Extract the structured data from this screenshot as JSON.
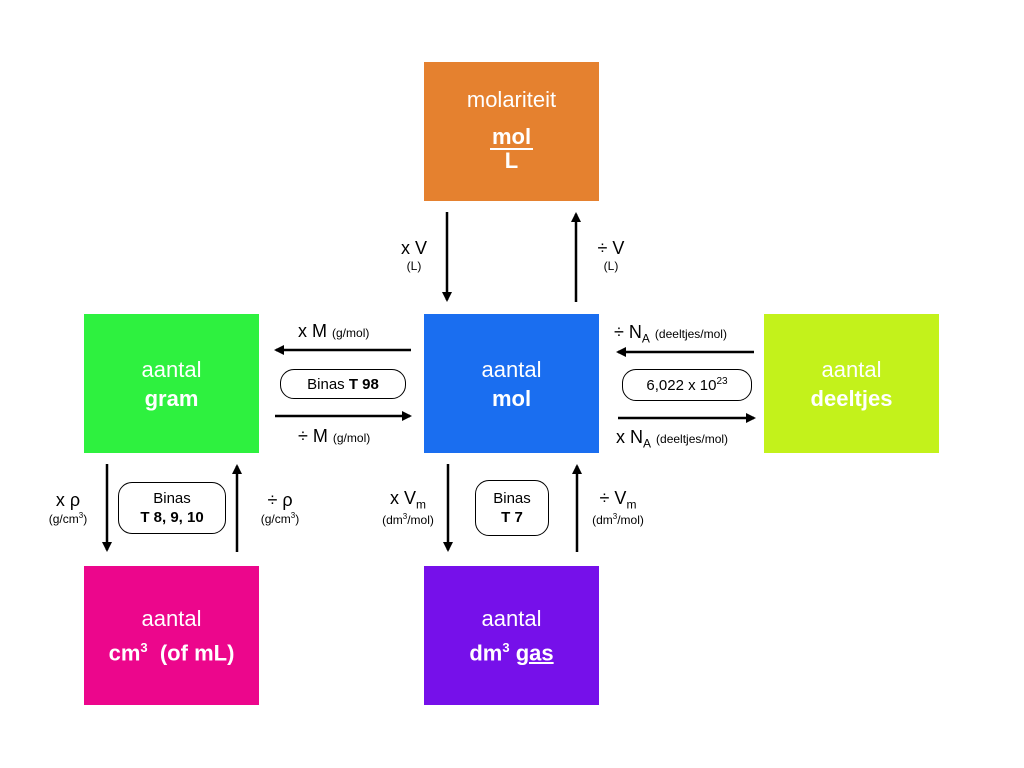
{
  "colors": {
    "molariteit": "#E5812F",
    "mol": "#1A6EF0",
    "gram": "#2EF13F",
    "deeltjes": "#C3F21B",
    "cm3": "#EC068C",
    "dm3": "#7610EA",
    "arrow": "#000000"
  },
  "boxes": {
    "molariteit": {
      "title": "molariteit",
      "numerator": "mol",
      "denominator": "L"
    },
    "mol": {
      "line1": "aantal",
      "line2": "mol"
    },
    "gram": {
      "line1": "aantal",
      "line2": "gram"
    },
    "deeltjes": {
      "line1": "aantal",
      "line2": "deeltjes"
    },
    "cm3": {
      "line1": "aantal",
      "line2_pre": "cm",
      "line2_sup": "3",
      "line2_post": "(of mL)"
    },
    "dm3": {
      "line1": "aantal",
      "line2_pre": "dm",
      "line2_sup": "3",
      "line2_gas": "gas"
    }
  },
  "labels": {
    "mol_down": {
      "main": "x V",
      "unit": "(L)"
    },
    "mol_up": {
      "main": "÷ V",
      "unit": "(L)"
    },
    "to_gram": {
      "main": "x M",
      "unit": "(g/mol)"
    },
    "from_gram": {
      "main": "÷ M",
      "unit": "(g/mol)"
    },
    "from_deeltjes": {
      "pre": "÷ N",
      "sub": "A",
      "unit": "(deeltjes/mol)"
    },
    "to_deeltjes": {
      "pre": "x N",
      "sub": "A",
      "unit": "(deeltjes/mol)"
    },
    "gram_down": {
      "main": "x ρ",
      "unit_pre": "(g/cm",
      "unit_sup": "3",
      "unit_post": ")"
    },
    "gram_up": {
      "main": "÷ ρ",
      "unit_pre": "(g/cm",
      "unit_sup": "3",
      "unit_post": ")"
    },
    "mol_to_gas": {
      "pre": "x V",
      "sub": "m",
      "unit_pre": "(dm",
      "unit_sup": "3",
      "unit_post": "/mol)"
    },
    "gas_to_mol": {
      "pre": "÷ V",
      "sub": "m",
      "unit_pre": "(dm",
      "unit_sup": "3",
      "unit_post": "/mol)"
    }
  },
  "pills": {
    "binas_gram": {
      "pre": "Binas ",
      "bold": "T 98"
    },
    "avogadro": {
      "pre": "6,022 x 10",
      "sup": "23"
    },
    "binas_density": {
      "line1": "Binas",
      "line2": "T 8, 9, 10"
    },
    "binas_gas": {
      "line1": "Binas",
      "line2": "T 7"
    }
  }
}
